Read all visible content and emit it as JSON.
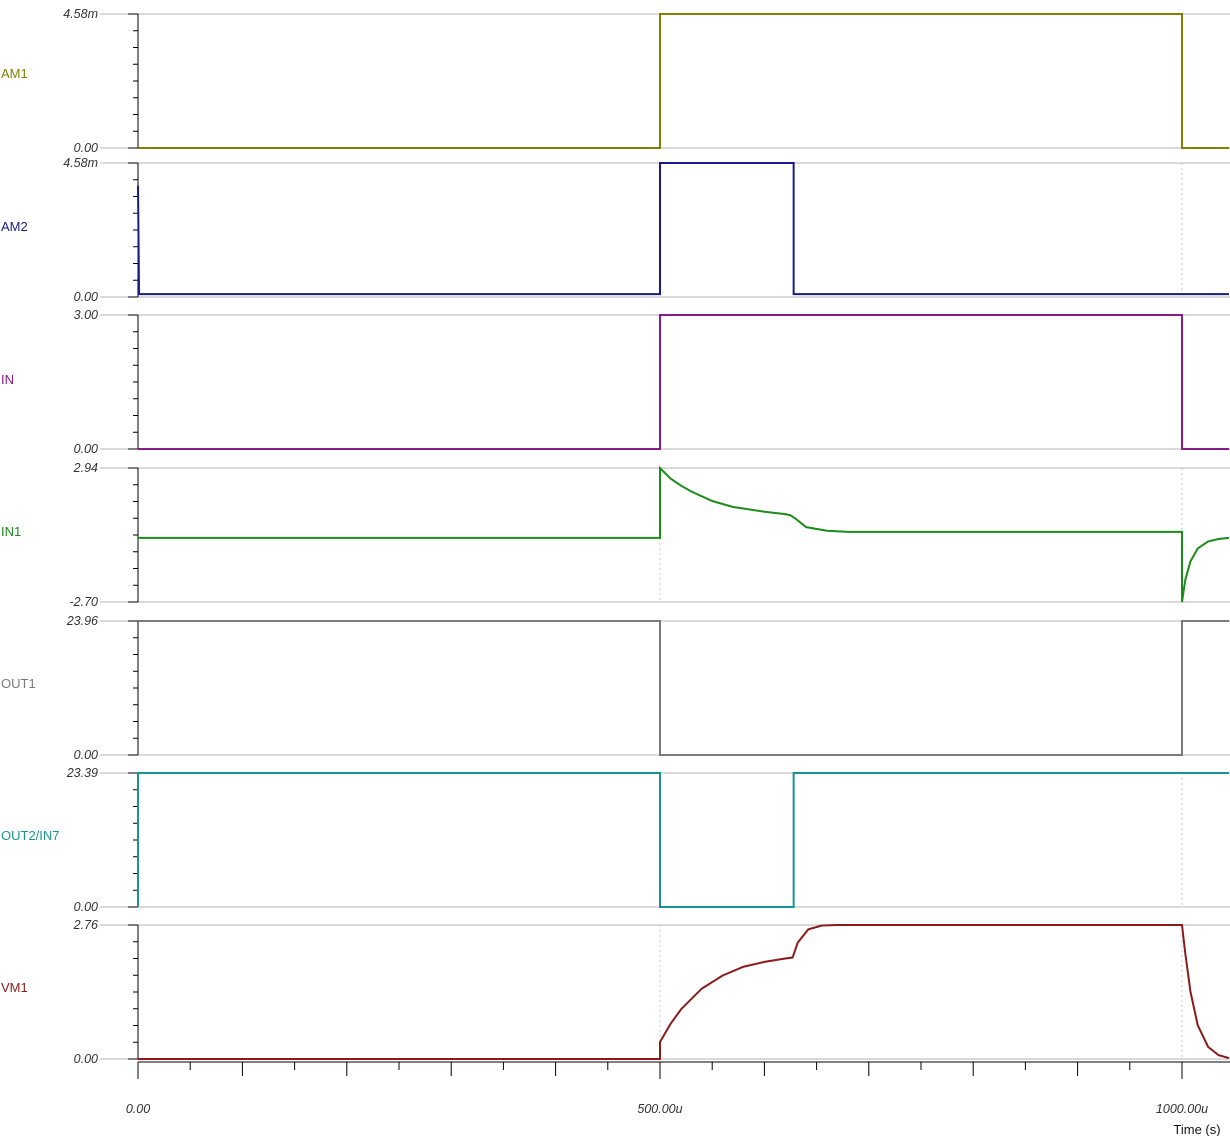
{
  "chart_data": {
    "type": "line",
    "xlabel": "Time (s)",
    "x_ticks": [
      "0.00",
      "500.00u",
      "1000.00u"
    ],
    "xlim": [
      0,
      0.001045
    ],
    "series": [
      {
        "name": "AM1",
        "color": "#808000",
        "y_top_label": "4.58m",
        "y_bottom_label": "0.00",
        "ylim": [
          0,
          0.00458
        ],
        "x": [
          0,
          0.0005,
          0.0005,
          0.001,
          0.001,
          0.001045
        ],
        "y": [
          0,
          0,
          0.00458,
          0.00458,
          0,
          0
        ]
      },
      {
        "name": "AM2",
        "color": "#1a1a8c",
        "y_top_label": "4.58m",
        "y_bottom_label": "0.00",
        "ylim": [
          0,
          0.00458
        ],
        "x": [
          0,
          0,
          1e-06,
          0.0005,
          0.0005,
          0.000628,
          0.000628,
          0.001045
        ],
        "y": [
          0.0037,
          0.0038,
          0.0001,
          0.0001,
          0.00458,
          0.00458,
          0.0001,
          0.0001
        ]
      },
      {
        "name": "IN",
        "color": "#8b1a8b",
        "y_top_label": "3.00",
        "y_bottom_label": "0.00",
        "ylim": [
          0,
          3.0
        ],
        "x": [
          0,
          0.0005,
          0.0005,
          0.001,
          0.001,
          0.001045
        ],
        "y": [
          0,
          0,
          3.0,
          3.0,
          0,
          0
        ]
      },
      {
        "name": "IN1",
        "color": "#1a8c1a",
        "y_top_label": "2.94",
        "y_bottom_label": "-2.70",
        "ylim": [
          -2.7,
          2.94
        ],
        "x": [
          0,
          0.0005,
          0.0005,
          0.00051,
          0.00052,
          0.00053,
          0.00055,
          0.00057,
          0.0006,
          0.00062,
          0.000625,
          0.00063,
          0.00064,
          0.00066,
          0.00068,
          0.001,
          0.001,
          0.001003,
          0.001008,
          0.001015,
          0.001025,
          0.001035,
          0.001045
        ],
        "y": [
          0.0,
          0.0,
          2.94,
          2.5,
          2.2,
          1.95,
          1.55,
          1.3,
          1.1,
          1.0,
          0.95,
          0.8,
          0.45,
          0.3,
          0.25,
          0.25,
          -2.7,
          -1.8,
          -1.0,
          -0.45,
          -0.15,
          -0.05,
          0.0
        ]
      },
      {
        "name": "OUT1",
        "color": "#7a7a7a",
        "y_top_label": "23.96",
        "y_bottom_label": "0.00",
        "ylim": [
          0,
          23.96
        ],
        "x": [
          0,
          0.0005,
          0.0005,
          0.001,
          0.001,
          0.001045
        ],
        "y": [
          23.96,
          23.96,
          0,
          0,
          23.96,
          23.96
        ]
      },
      {
        "name": "OUT2/IN7",
        "color": "#1a9393",
        "y_top_label": "23.39",
        "y_bottom_label": "0.00",
        "ylim": [
          0,
          23.39
        ],
        "x": [
          0,
          0,
          0.0005,
          0.0005,
          0.000628,
          0.000628,
          0.001045
        ],
        "y": [
          0,
          23.39,
          23.39,
          0,
          0,
          23.39,
          23.39
        ]
      },
      {
        "name": "VM1",
        "color": "#8b1a1a",
        "y_top_label": "2.76",
        "y_bottom_label": "0.00",
        "ylim": [
          0,
          2.76
        ],
        "x": [
          0,
          0.0005,
          0.0005,
          0.00051,
          0.00052,
          0.00054,
          0.00056,
          0.00058,
          0.0006,
          0.00062,
          0.000627,
          0.000632,
          0.000642,
          0.000655,
          0.00067,
          0.001,
          0.001003,
          0.001008,
          0.001015,
          0.001025,
          0.001035,
          0.001045
        ],
        "y": [
          0,
          0,
          0.35,
          0.72,
          1.02,
          1.45,
          1.72,
          1.9,
          2.0,
          2.07,
          2.09,
          2.4,
          2.67,
          2.75,
          2.76,
          2.76,
          2.2,
          1.4,
          0.7,
          0.25,
          0.08,
          0.02
        ]
      }
    ]
  }
}
